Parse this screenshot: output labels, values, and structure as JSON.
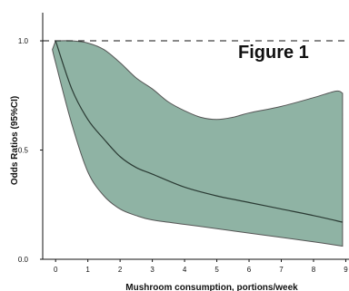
{
  "chart_data": {
    "type": "area",
    "figure_label": "Figure 1",
    "title": "",
    "xlabel": "Mushroom consumption, portions/week",
    "ylabel": "Odds Ratios (95%CI)",
    "xlim": [
      -0.4,
      9.1
    ],
    "ylim": [
      0,
      1.05
    ],
    "x_ticks": [
      "0",
      "1",
      "2",
      "3",
      "4",
      "5",
      "6",
      "7",
      "8",
      "9"
    ],
    "y_ticks": [
      "0.0",
      "0.5",
      "1.0"
    ],
    "reference_line": 1.0,
    "grid": false,
    "legend": "none",
    "colors": {
      "band": "#8fb3a4",
      "line": "#2a3a33",
      "outline": "#555555",
      "reference": "#111111"
    },
    "series": [
      {
        "role": "estimate",
        "x": [
          0,
          0.5,
          1,
          1.5,
          2,
          2.5,
          3,
          4,
          5,
          6,
          7,
          8,
          8.9
        ],
        "y": [
          1.0,
          0.78,
          0.64,
          0.55,
          0.47,
          0.42,
          0.39,
          0.33,
          0.29,
          0.26,
          0.23,
          0.2,
          0.17
        ]
      },
      {
        "role": "upper",
        "x": [
          0,
          0.5,
          1,
          1.5,
          2,
          2.5,
          3,
          3.5,
          4,
          4.5,
          5,
          5.5,
          6,
          7,
          8,
          8.7,
          8.9
        ],
        "y": [
          1.0,
          1.0,
          0.99,
          0.96,
          0.9,
          0.83,
          0.78,
          0.72,
          0.68,
          0.65,
          0.64,
          0.65,
          0.67,
          0.7,
          0.74,
          0.77,
          0.76
        ]
      },
      {
        "role": "lower",
        "x": [
          -0.1,
          0,
          0.5,
          1,
          1.5,
          2,
          2.5,
          3,
          4,
          5,
          6,
          7,
          8,
          8.9
        ],
        "y": [
          0.96,
          0.9,
          0.62,
          0.4,
          0.29,
          0.23,
          0.2,
          0.18,
          0.16,
          0.14,
          0.12,
          0.1,
          0.08,
          0.06
        ]
      }
    ]
  }
}
